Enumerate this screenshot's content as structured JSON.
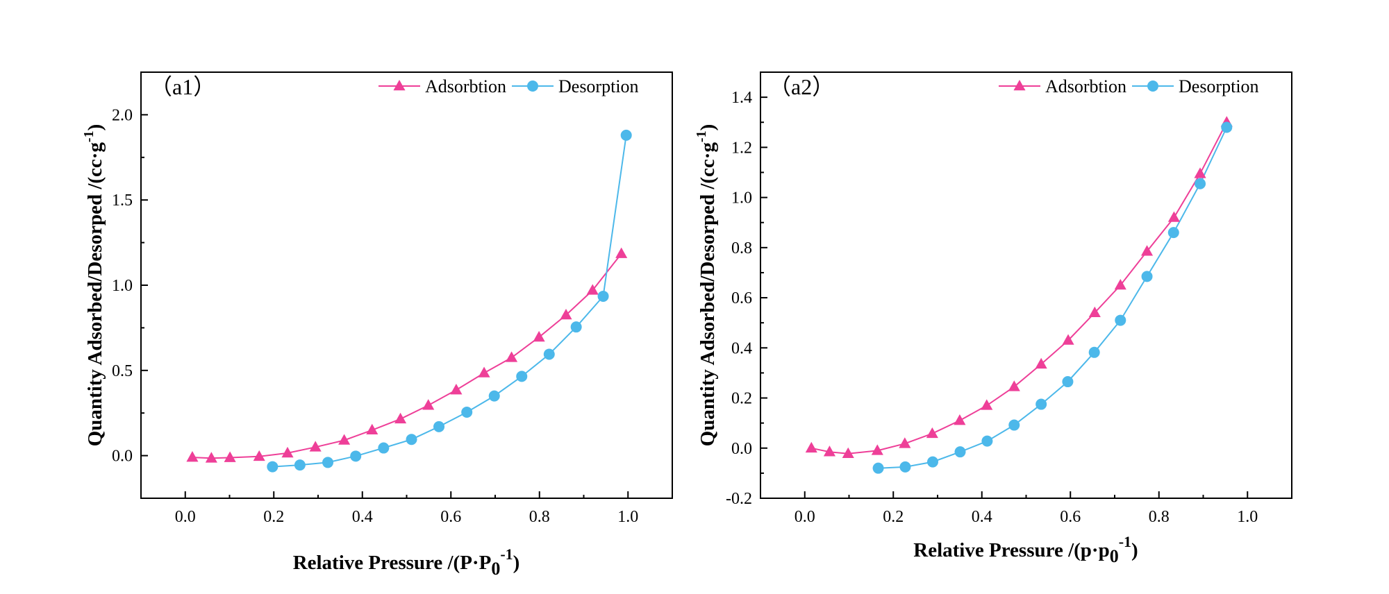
{
  "colors": {
    "adsorption": "#EE3F98",
    "desorption": "#4CB8EA"
  },
  "chart_data": [
    {
      "type": "line",
      "panel_label": "（a1）",
      "xlabel": "Relative Pressure /(P·P0-1)",
      "xlabel_parts": {
        "main": "Relative Pressure /(P·P",
        "sub": "0",
        "sup": "-1",
        "close": ")"
      },
      "ylabel": "Quantity Adsorbed/Desorped /(cc·g-1)",
      "ylabel_parts": {
        "main": "Quantity Adsorbed/Desorped /(cc·g",
        "sup": "-1",
        "close": ")"
      },
      "xlim": [
        -0.1,
        1.1
      ],
      "ylim": [
        -0.25,
        2.25
      ],
      "xticks": [
        0.0,
        0.2,
        0.4,
        0.6,
        0.8,
        1.0
      ],
      "xtick_labels": [
        "0.0",
        "0.2",
        "0.4",
        "0.6",
        "0.8",
        "1.0"
      ],
      "yticks": [
        0.0,
        0.5,
        1.0,
        1.5,
        2.0
      ],
      "ytick_labels": [
        "0.0",
        "0.5",
        "1.0",
        "1.5",
        "2.0"
      ],
      "legend": "top-right",
      "grid": false,
      "series": [
        {
          "name": "Adsorbtion",
          "marker": "triangle",
          "x": [
            0.016,
            0.059,
            0.101,
            0.167,
            0.231,
            0.294,
            0.359,
            0.422,
            0.486,
            0.549,
            0.612,
            0.675,
            0.737,
            0.799,
            0.86,
            0.92,
            0.985
          ],
          "y": [
            -0.01,
            -0.015,
            -0.012,
            -0.005,
            0.015,
            0.05,
            0.09,
            0.15,
            0.215,
            0.295,
            0.385,
            0.485,
            0.575,
            0.695,
            0.825,
            0.97,
            1.185
          ]
        },
        {
          "name": "Desorption",
          "marker": "circle",
          "x": [
            0.197,
            0.259,
            0.322,
            0.385,
            0.448,
            0.511,
            0.573,
            0.636,
            0.698,
            0.76,
            0.822,
            0.883,
            0.944,
            0.996
          ],
          "y": [
            -0.065,
            -0.055,
            -0.04,
            -0.003,
            0.045,
            0.095,
            0.17,
            0.255,
            0.35,
            0.465,
            0.595,
            0.755,
            0.935,
            1.88
          ]
        }
      ]
    },
    {
      "type": "line",
      "panel_label": "（a2）",
      "xlabel": "Relative Pressure /(p·p0-1)",
      "xlabel_parts": {
        "main": "Relative Pressure /(p·p",
        "sub": "0",
        "sup": "-1",
        "close": ")"
      },
      "ylabel": "Quantity Adsorbed/Desorped /(cc·g-1)",
      "ylabel_parts": {
        "main": "Quantity Adsorbed/Desorped /(cc·g",
        "sup": "-1",
        "close": ")"
      },
      "xlim": [
        -0.1,
        1.1
      ],
      "ylim": [
        -0.2,
        1.5
      ],
      "xticks": [
        0.0,
        0.2,
        0.4,
        0.6,
        0.8,
        1.0
      ],
      "xtick_labels": [
        "0.0",
        "0.2",
        "0.4",
        "0.6",
        "0.8",
        "1.0"
      ],
      "yticks": [
        -0.2,
        0.0,
        0.2,
        0.4,
        0.6,
        0.8,
        1.0,
        1.2,
        1.4
      ],
      "ytick_labels": [
        "-0.2",
        "0.0",
        "0.2",
        "0.4",
        "0.6",
        "0.8",
        "1.0",
        "1.2",
        "1.4"
      ],
      "legend": "top-right",
      "grid": false,
      "series": [
        {
          "name": "Adsorbtion",
          "marker": "triangle",
          "x": [
            0.015,
            0.056,
            0.098,
            0.164,
            0.226,
            0.288,
            0.35,
            0.411,
            0.473,
            0.534,
            0.595,
            0.655,
            0.713,
            0.773,
            0.834,
            0.893,
            0.953
          ],
          "y": [
            0.0,
            -0.015,
            -0.022,
            -0.01,
            0.018,
            0.058,
            0.11,
            0.17,
            0.245,
            0.335,
            0.43,
            0.54,
            0.65,
            0.785,
            0.92,
            1.095,
            1.3
          ]
        },
        {
          "name": "Desorption",
          "marker": "circle",
          "x": [
            0.166,
            0.227,
            0.289,
            0.351,
            0.412,
            0.473,
            0.534,
            0.594,
            0.654,
            0.713,
            0.773,
            0.833,
            0.893,
            0.953
          ],
          "y": [
            -0.08,
            -0.075,
            -0.055,
            -0.015,
            0.028,
            0.092,
            0.175,
            0.265,
            0.382,
            0.51,
            0.685,
            0.86,
            1.055,
            1.28
          ]
        }
      ]
    }
  ]
}
